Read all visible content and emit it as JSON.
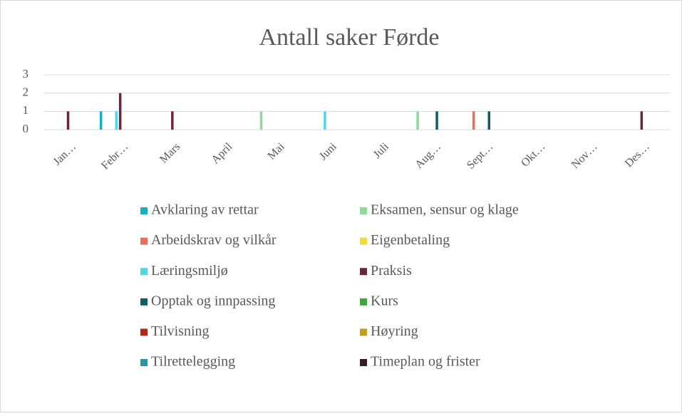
{
  "chart_data": {
    "type": "bar",
    "title": "Antall saker Førde",
    "categories": [
      "Jan…",
      "Febr…",
      "Mars",
      "April",
      "Mai",
      "Juni",
      "Juli",
      "Aug…",
      "Sept…",
      "Okt…",
      "Nov…",
      "Des…"
    ],
    "ylim": [
      0,
      3
    ],
    "yticks": [
      0,
      1,
      2,
      3
    ],
    "grid": true,
    "legend": "bottom",
    "series": [
      {
        "name": "Avklaring av rettar",
        "color": "#17b0bd",
        "values": [
          0,
          1,
          0,
          0,
          0,
          0,
          0,
          0,
          0,
          0,
          0,
          0
        ]
      },
      {
        "name": "Eksamen, sensur og klage",
        "color": "#8fd99a",
        "values": [
          0,
          0,
          0,
          0,
          1,
          0,
          0,
          1,
          0,
          0,
          0,
          0
        ]
      },
      {
        "name": "Arbeidskrav og vilkår",
        "color": "#e8705a",
        "values": [
          0,
          0,
          0,
          0,
          0,
          0,
          0,
          0,
          1,
          0,
          0,
          0
        ]
      },
      {
        "name": "Eigenbetaling",
        "color": "#f2dc3c",
        "values": [
          0,
          0,
          0,
          0,
          0,
          0,
          0,
          0,
          0,
          0,
          0,
          0
        ]
      },
      {
        "name": "Læringsmiljø",
        "color": "#4fd6e8",
        "values": [
          0,
          1,
          0,
          0,
          0,
          1,
          0,
          0,
          0,
          0,
          0,
          0
        ]
      },
      {
        "name": "Praksis",
        "color": "#6e2440",
        "values": [
          1,
          2,
          1,
          0,
          0,
          0,
          0,
          0,
          0,
          0,
          0,
          1
        ]
      },
      {
        "name": "Opptak og innpassing",
        "color": "#0e5e67",
        "values": [
          0,
          0,
          0,
          0,
          0,
          0,
          0,
          1,
          1,
          0,
          0,
          0
        ]
      },
      {
        "name": "Kurs",
        "color": "#3aa83a",
        "values": [
          0,
          0,
          0,
          0,
          0,
          0,
          0,
          0,
          0,
          0,
          0,
          0
        ]
      },
      {
        "name": "Tilvisning",
        "color": "#b02a15",
        "values": [
          0,
          0,
          0,
          0,
          0,
          0,
          0,
          0,
          0,
          0,
          0,
          0
        ]
      },
      {
        "name": "Høyring",
        "color": "#c0a01a",
        "values": [
          0,
          0,
          0,
          0,
          0,
          0,
          0,
          0,
          0,
          0,
          0,
          0
        ]
      },
      {
        "name": "Tilrettelegging",
        "color": "#2a94a6",
        "values": [
          0,
          0,
          0,
          0,
          0,
          0,
          0,
          0,
          0,
          0,
          0,
          0
        ]
      },
      {
        "name": "Timeplan og frister",
        "color": "#3a1a26",
        "values": [
          0,
          0,
          0,
          0,
          0,
          0,
          0,
          0,
          0,
          0,
          0,
          0
        ]
      }
    ]
  }
}
